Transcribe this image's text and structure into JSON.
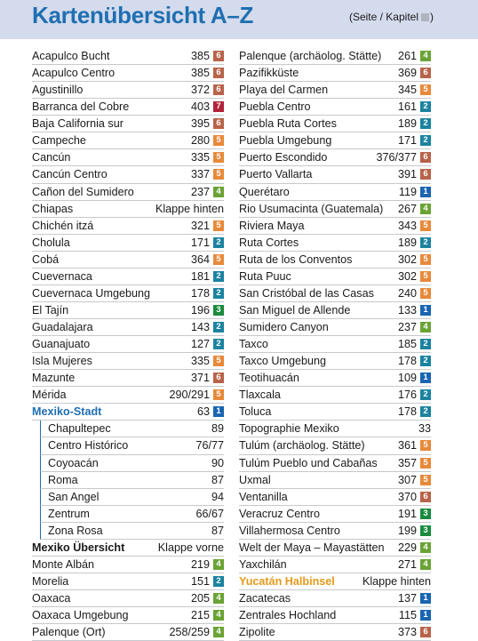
{
  "header": {
    "title": "Kartenübersicht A–Z",
    "legend_label": "(Seite / Kapitel",
    "legend_close": ")"
  },
  "chapter_colors": {
    "1": "#1a65b2",
    "2": "#1b83a0",
    "3": "#1a8b3e",
    "4": "#6aa335",
    "5": "#e8893a",
    "6": "#b8634a",
    "7": "#b2243b"
  },
  "left_column": [
    {
      "name": "Acapulco Bucht",
      "page": "385",
      "chapter": "6"
    },
    {
      "name": "Acapulco Centro",
      "page": "385",
      "chapter": "6"
    },
    {
      "name": "Agustinillo",
      "page": "372",
      "chapter": "6"
    },
    {
      "name": "Barranca del Cobre",
      "page": "403",
      "chapter": "7"
    },
    {
      "name": "Baja California sur",
      "page": "395",
      "chapter": "6"
    },
    {
      "name": "Campeche",
      "page": "280",
      "chapter": "5"
    },
    {
      "name": "Cancún",
      "page": "335",
      "chapter": "5"
    },
    {
      "name": "Cancún Centro",
      "page": "337",
      "chapter": "5"
    },
    {
      "name": "Cañon del Sumidero",
      "page": "237",
      "chapter": "4"
    },
    {
      "name": "Chiapas",
      "page": "Klappe hinten",
      "chapter": ""
    },
    {
      "name": "Chichén itzá",
      "page": "321",
      "chapter": "5"
    },
    {
      "name": "Cholula",
      "page": "171",
      "chapter": "2"
    },
    {
      "name": "Cobá",
      "page": "364",
      "chapter": "5"
    },
    {
      "name": "Cuevernaca",
      "page": "181",
      "chapter": "2"
    },
    {
      "name": "Cuevernaca Umgebung",
      "page": "178",
      "chapter": "2"
    },
    {
      "name": "El Tajín",
      "page": "196",
      "chapter": "3"
    },
    {
      "name": "Guadalajara",
      "page": "143",
      "chapter": "2"
    },
    {
      "name": "Guanajuato",
      "page": "127",
      "chapter": "2"
    },
    {
      "name": "Isla Mujeres",
      "page": "335",
      "chapter": "5"
    },
    {
      "name": "Mazunte",
      "page": "371",
      "chapter": "6"
    },
    {
      "name": "Mérida",
      "page": "290/291",
      "chapter": "5"
    },
    {
      "name": "Mexiko-Stadt",
      "page": "63",
      "chapter": "1",
      "style": "blue"
    },
    {
      "name": "Chapultepec",
      "page": "89",
      "chapter": "",
      "sub": true
    },
    {
      "name": "Centro Histórico",
      "page": "76/77",
      "chapter": "",
      "sub": true
    },
    {
      "name": "Coyoacán",
      "page": "90",
      "chapter": "",
      "sub": true
    },
    {
      "name": "Roma",
      "page": "87",
      "chapter": "",
      "sub": true
    },
    {
      "name": "San Angel",
      "page": "94",
      "chapter": "",
      "sub": true
    },
    {
      "name": "Zentrum",
      "page": "66/67",
      "chapter": "",
      "sub": true
    },
    {
      "name": "Zona Rosa",
      "page": "87",
      "chapter": "",
      "sub": true
    },
    {
      "name": "Mexiko Übersicht",
      "page": "Klappe vorne",
      "chapter": "",
      "style": "bold"
    },
    {
      "name": "Monte Albán",
      "page": "219",
      "chapter": "4"
    },
    {
      "name": "Morelia",
      "page": "151",
      "chapter": "2"
    },
    {
      "name": "Oaxaca",
      "page": "205",
      "chapter": "4"
    },
    {
      "name": "Oaxaca Umgebung",
      "page": "215",
      "chapter": "4"
    },
    {
      "name": "Palenque (Ort)",
      "page": "258/259",
      "chapter": "4"
    }
  ],
  "right_column": [
    {
      "name": "Palenque (archäolog. Stätte)",
      "page": "261",
      "chapter": "4"
    },
    {
      "name": "Pazifikküste",
      "page": "369",
      "chapter": "6"
    },
    {
      "name": "Playa del Carmen",
      "page": "345",
      "chapter": "5"
    },
    {
      "name": "Puebla Centro",
      "page": "161",
      "chapter": "2"
    },
    {
      "name": "Puebla Ruta Cortes",
      "page": "189",
      "chapter": "2"
    },
    {
      "name": "Puebla Umgebung",
      "page": "171",
      "chapter": "2"
    },
    {
      "name": "Puerto Escondido",
      "page": "376/377",
      "chapter": "6"
    },
    {
      "name": "Puerto Vallarta",
      "page": "391",
      "chapter": "6"
    },
    {
      "name": "Querétaro",
      "page": "119",
      "chapter": "1"
    },
    {
      "name": "Rio Usumacinta (Guatemala)",
      "page": "267",
      "chapter": "4"
    },
    {
      "name": "Riviera Maya",
      "page": "343",
      "chapter": "5"
    },
    {
      "name": "Ruta Cortes",
      "page": "189",
      "chapter": "2"
    },
    {
      "name": "Ruta de los Conventos",
      "page": "302",
      "chapter": "5"
    },
    {
      "name": "Ruta Puuc",
      "page": "302",
      "chapter": "5"
    },
    {
      "name": "San Cristóbal de las Casas",
      "page": "240",
      "chapter": "5"
    },
    {
      "name": "San Miguel de Allende",
      "page": "133",
      "chapter": "1"
    },
    {
      "name": "Sumidero Canyon",
      "page": "237",
      "chapter": "4"
    },
    {
      "name": "Taxco",
      "page": "185",
      "chapter": "2"
    },
    {
      "name": "Taxco Umgebung",
      "page": "178",
      "chapter": "2"
    },
    {
      "name": "Teotihuacán",
      "page": "109",
      "chapter": "1"
    },
    {
      "name": "Tlaxcala",
      "page": "176",
      "chapter": "2"
    },
    {
      "name": "Toluca",
      "page": "178",
      "chapter": "2"
    },
    {
      "name": "Topographie Mexiko",
      "page": "33",
      "chapter": ""
    },
    {
      "name": "Tulúm (archäolog. Stätte)",
      "page": "361",
      "chapter": "5"
    },
    {
      "name": "Tulúm Pueblo und Cabañas",
      "page": "357",
      "chapter": "5"
    },
    {
      "name": "Uxmal",
      "page": "307",
      "chapter": "5"
    },
    {
      "name": "Ventanilla",
      "page": "370",
      "chapter": "6"
    },
    {
      "name": "Veracruz Centro",
      "page": "191",
      "chapter": "3"
    },
    {
      "name": "Villahermosa Centro",
      "page": "199",
      "chapter": "3"
    },
    {
      "name": "Welt der Maya – Mayastätten",
      "page": "229",
      "chapter": "4"
    },
    {
      "name": "Yaxchilán",
      "page": "271",
      "chapter": "4"
    },
    {
      "name": "Yucatán Halbinsel",
      "page": "Klappe hinten",
      "chapter": "",
      "style": "orange"
    },
    {
      "name": "Zacatecas",
      "page": "137",
      "chapter": "1"
    },
    {
      "name": "Zentrales Hochland",
      "page": "115",
      "chapter": "1"
    },
    {
      "name": "Zipolite",
      "page": "373",
      "chapter": "6"
    }
  ]
}
